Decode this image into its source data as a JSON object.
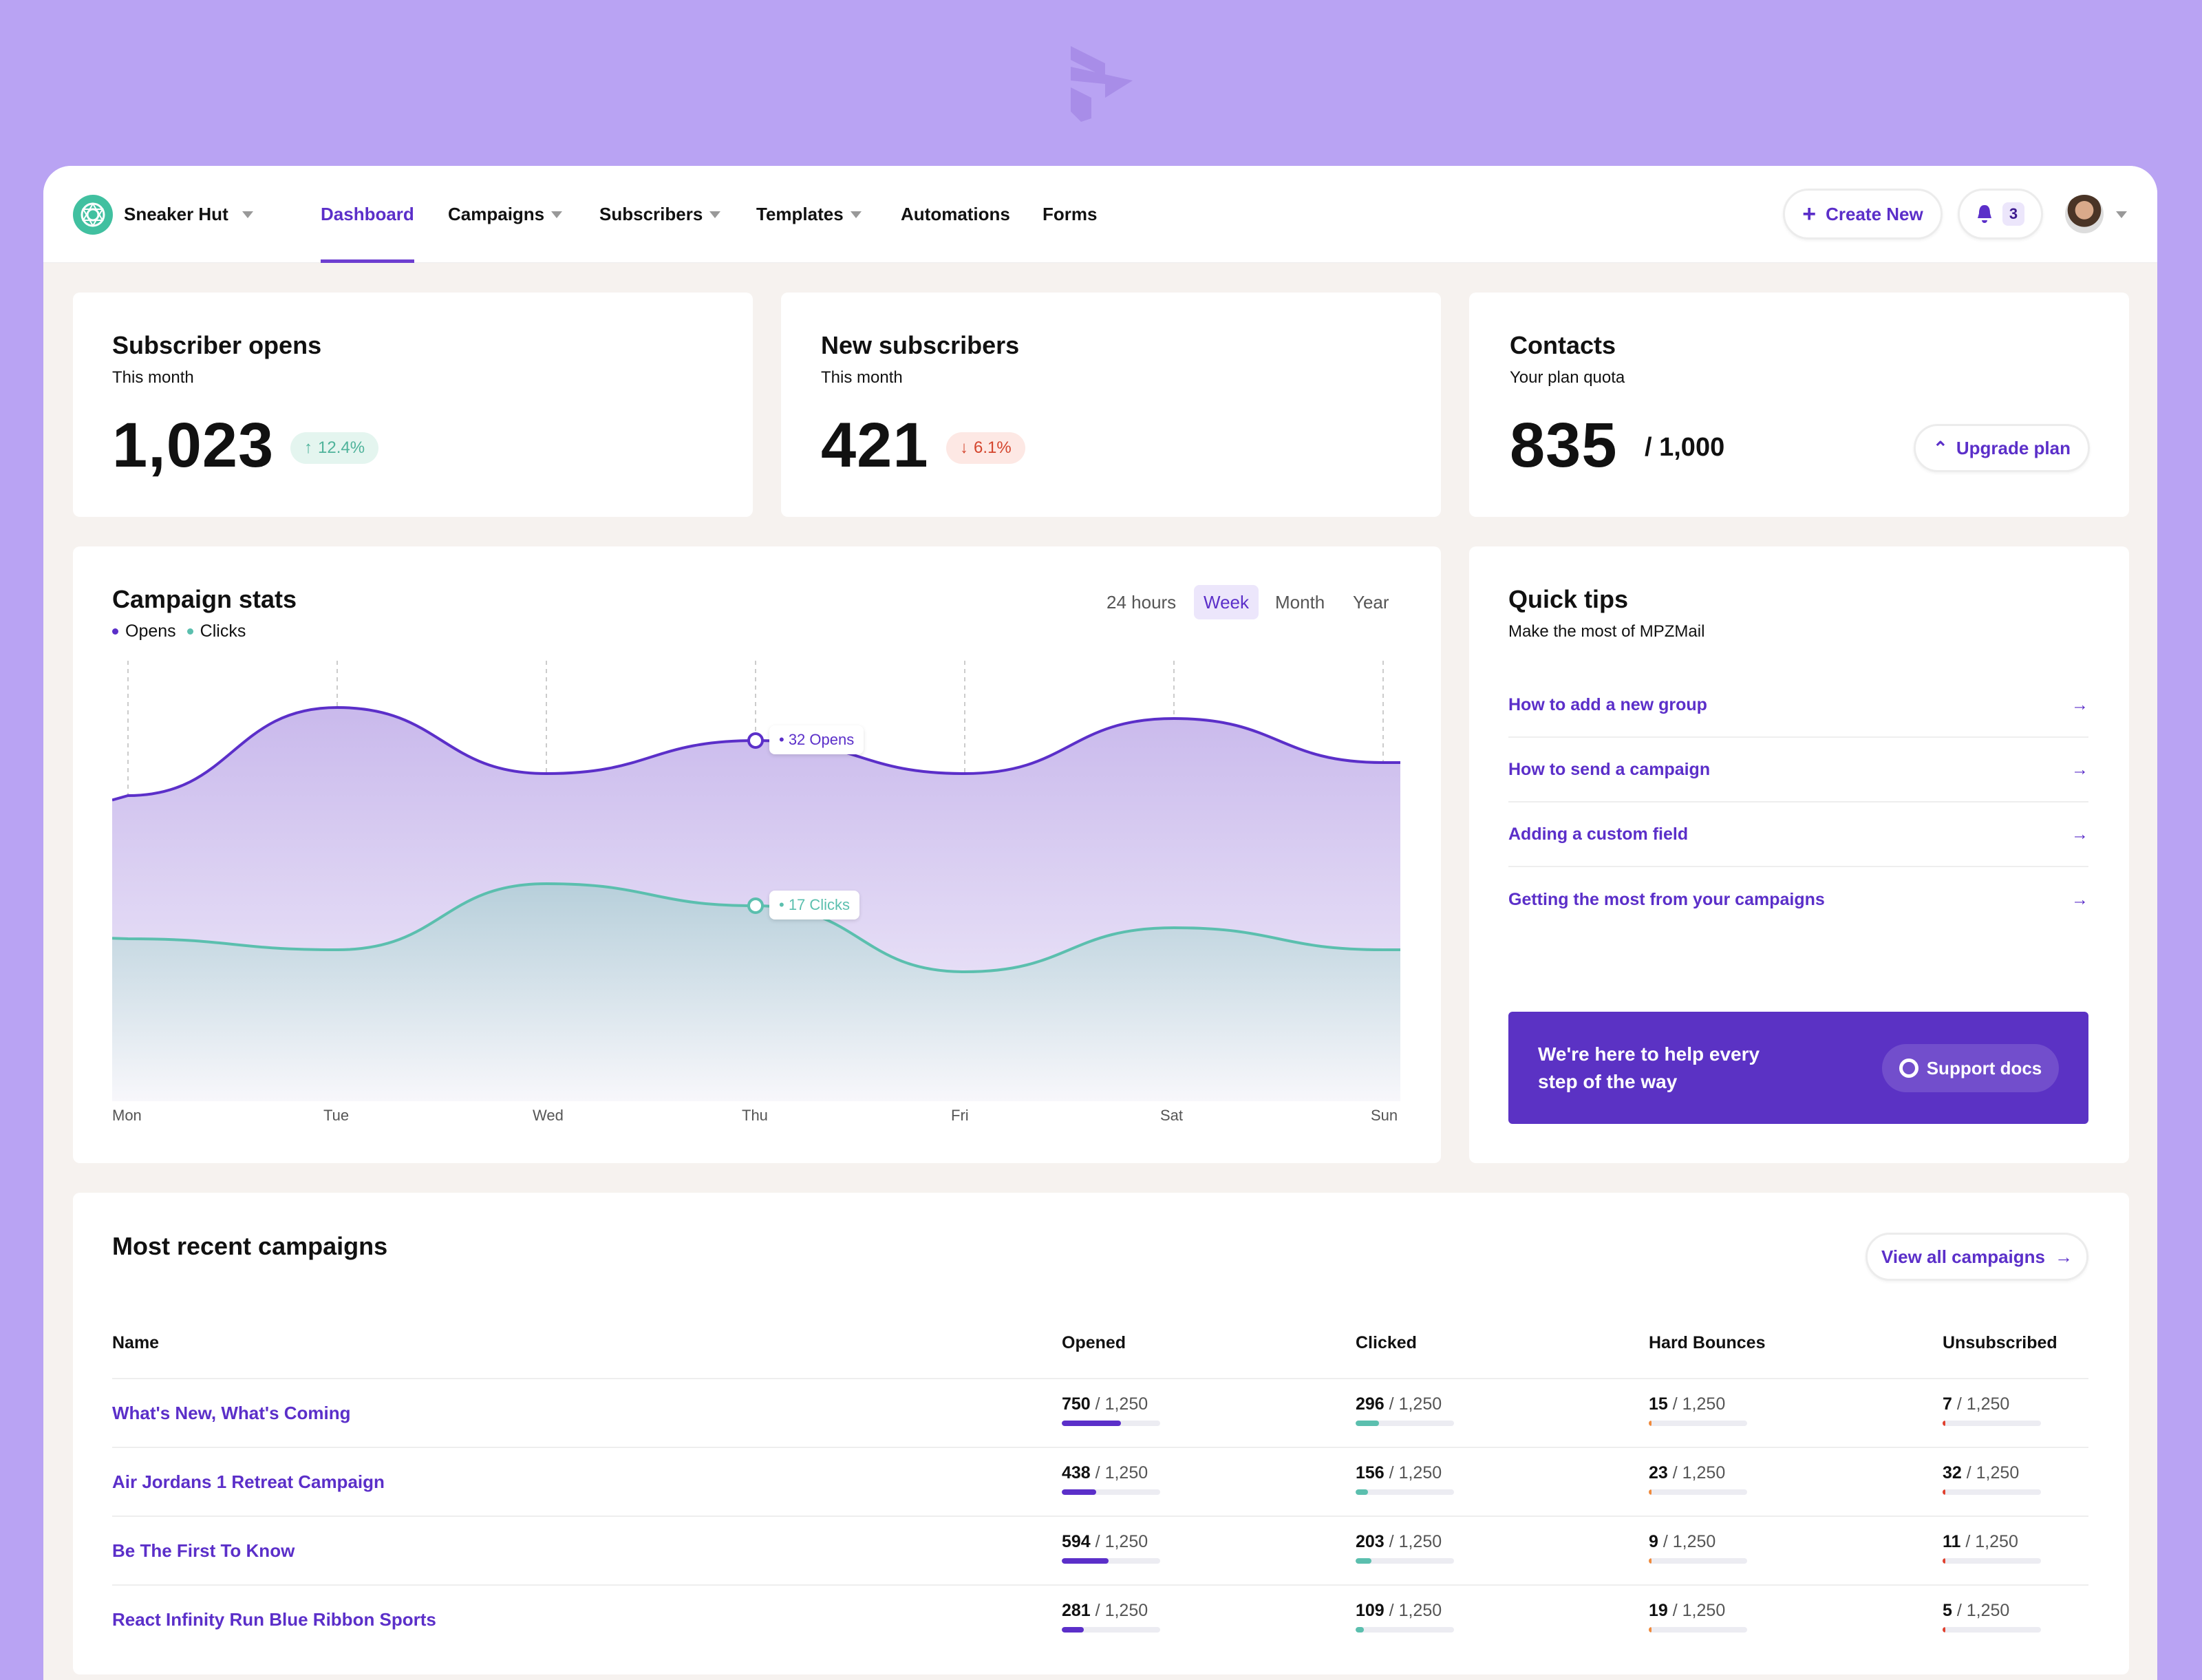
{
  "brand": {
    "name": "Sneaker Hut"
  },
  "nav": [
    {
      "label": "Dashboard",
      "active": true
    },
    {
      "label": "Campaigns",
      "caret": true
    },
    {
      "label": "Subscribers",
      "caret": true
    },
    {
      "label": "Templates",
      "caret": true
    },
    {
      "label": "Automations"
    },
    {
      "label": "Forms"
    }
  ],
  "header": {
    "create_label": "Create New",
    "notifications": "3"
  },
  "stats": [
    {
      "title": "Subscriber opens",
      "subtitle": "This month",
      "value": "1,023",
      "change": "12.4%",
      "trend": "up"
    },
    {
      "title": "New subscribers",
      "subtitle": "This month",
      "value": "421",
      "change": "6.1%",
      "trend": "down"
    },
    {
      "title": "Contacts",
      "subtitle": "Your plan quota",
      "value": "835",
      "quota": "/ 1,000",
      "action": "Upgrade plan"
    }
  ],
  "campaign_stats": {
    "title": "Campaign stats",
    "legend": [
      "Opens",
      "Clicks"
    ],
    "ranges": [
      "24 hours",
      "Week",
      "Month",
      "Year"
    ],
    "selected_range": "Week"
  },
  "chart_data": {
    "type": "area",
    "title": "Campaign stats",
    "x": [
      "Mon",
      "Tue",
      "Wed",
      "Thu",
      "Fri",
      "Sat",
      "Sun"
    ],
    "series": [
      {
        "name": "Opens",
        "values": [
          27,
          35,
          29,
          32,
          29,
          34,
          30
        ],
        "color": "#5b2fc9"
      },
      {
        "name": "Clicks",
        "values": [
          14,
          13,
          19,
          17,
          11,
          15,
          13
        ],
        "color": "#5bbfae"
      }
    ],
    "ylim": [
      0,
      38
    ],
    "grid": "vertical dashed",
    "annotations": [
      {
        "series": "Opens",
        "x": "Thu",
        "label": "• 32 Opens"
      },
      {
        "series": "Clicks",
        "x": "Thu",
        "label": "• 17 Clicks"
      }
    ]
  },
  "tips": {
    "title": "Quick tips",
    "subtitle": "Make the most of MPZMail",
    "items": [
      "How to add a new group",
      "How to send a campaign",
      "Adding a custom field",
      "Getting the most from your campaigns"
    ],
    "support_text": "We're here to help every step of the way",
    "support_button": "Support docs"
  },
  "campaigns": {
    "title": "Most recent campaigns",
    "view_all": "View all campaigns",
    "columns": [
      "Name",
      "Opened",
      "Clicked",
      "Hard Bounces",
      "Unsubscribed"
    ],
    "total": "/ 1,250",
    "rows": [
      {
        "name": "What's New, What's Coming",
        "opened": "750",
        "clicked": "296",
        "bounces": "15",
        "unsub": "7"
      },
      {
        "name": "Air Jordans 1 Retreat Campaign",
        "opened": "438",
        "clicked": "156",
        "bounces": "23",
        "unsub": "32"
      },
      {
        "name": "Be The First To Know",
        "opened": "594",
        "clicked": "203",
        "bounces": "9",
        "unsub": "11"
      },
      {
        "name": "React Infinity Run Blue Ribbon Sports",
        "opened": "281",
        "clicked": "109",
        "bounces": "19",
        "unsub": "5"
      }
    ]
  }
}
